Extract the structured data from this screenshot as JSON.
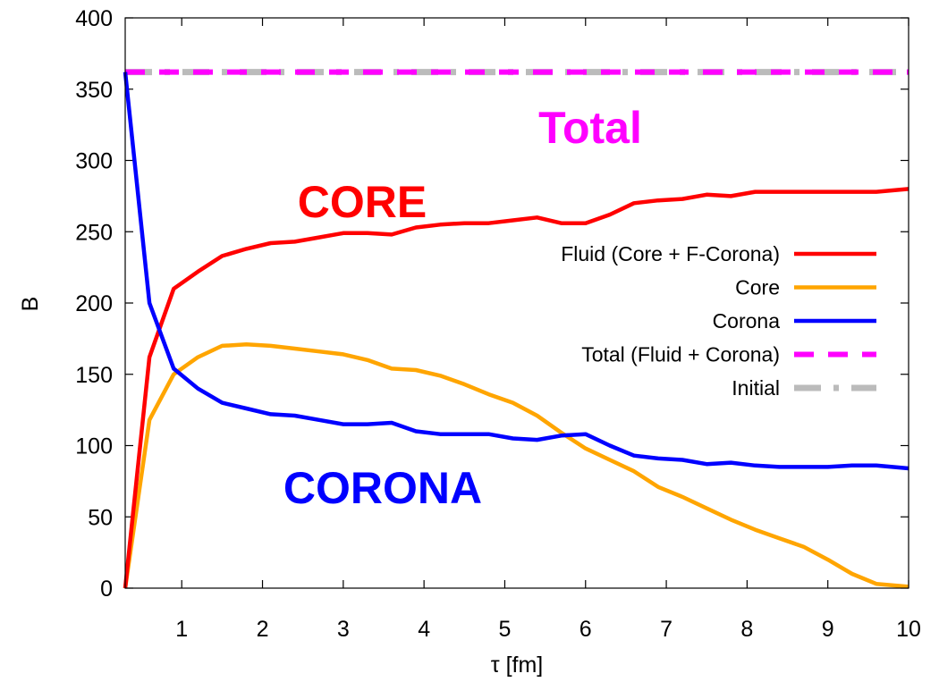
{
  "chart_data": {
    "type": "line",
    "xlabel": "τ [fm]",
    "ylabel": "B",
    "xlim": [
      0.3,
      10
    ],
    "ylim": [
      0,
      400
    ],
    "xticks": [
      1,
      2,
      3,
      4,
      5,
      6,
      7,
      8,
      9,
      10
    ],
    "yticks": [
      0,
      50,
      100,
      150,
      200,
      250,
      300,
      350,
      400
    ],
    "grid": false,
    "legend_position": "right",
    "annotations": [
      {
        "text": "Total",
        "color": "#ff00ff"
      },
      {
        "text": "CORE",
        "color": "#ff0000"
      },
      {
        "text": "CORONA",
        "color": "#0000ff"
      }
    ],
    "series": [
      {
        "name": "Fluid (Core + F-Corona)",
        "color": "#ff0000",
        "style": "solid",
        "x": [
          0.3,
          0.6,
          0.9,
          1.2,
          1.5,
          1.8,
          2.1,
          2.4,
          2.7,
          3.0,
          3.3,
          3.6,
          3.9,
          4.2,
          4.5,
          4.8,
          5.1,
          5.4,
          5.7,
          6.0,
          6.3,
          6.6,
          6.9,
          7.2,
          7.5,
          7.8,
          8.1,
          8.4,
          8.7,
          9.0,
          9.3,
          9.6,
          10.0
        ],
        "y": [
          0,
          162,
          210,
          222,
          233,
          238,
          242,
          243,
          246,
          249,
          249,
          248,
          253,
          255,
          256,
          256,
          258,
          260,
          256,
          256,
          262,
          270,
          272,
          273,
          276,
          275,
          278,
          278,
          278,
          278,
          278,
          278,
          280
        ]
      },
      {
        "name": "Core",
        "color": "#ffa500",
        "style": "solid",
        "x": [
          0.3,
          0.6,
          0.9,
          1.2,
          1.5,
          1.8,
          2.1,
          2.4,
          2.7,
          3.0,
          3.3,
          3.6,
          3.9,
          4.2,
          4.5,
          4.8,
          5.1,
          5.4,
          5.7,
          6.0,
          6.3,
          6.6,
          6.9,
          7.2,
          7.5,
          7.8,
          8.1,
          8.4,
          8.7,
          9.0,
          9.3,
          9.6,
          10.0
        ],
        "y": [
          0,
          118,
          150,
          162,
          170,
          171,
          170,
          168,
          166,
          164,
          160,
          154,
          153,
          149,
          143,
          136,
          130,
          121,
          109,
          98,
          90,
          82,
          71,
          64,
          56,
          48,
          41,
          35,
          29,
          20,
          10,
          3,
          1
        ]
      },
      {
        "name": "Corona",
        "color": "#0000ff",
        "style": "solid",
        "x": [
          0.3,
          0.6,
          0.9,
          1.2,
          1.5,
          1.8,
          2.1,
          2.4,
          2.7,
          3.0,
          3.3,
          3.6,
          3.9,
          4.2,
          4.5,
          4.8,
          5.1,
          5.4,
          5.7,
          6.0,
          6.3,
          6.6,
          6.9,
          7.2,
          7.5,
          7.8,
          8.1,
          8.4,
          8.7,
          9.0,
          9.3,
          9.6,
          10.0
        ],
        "y": [
          362,
          200,
          154,
          140,
          130,
          126,
          122,
          121,
          118,
          115,
          115,
          116,
          110,
          108,
          108,
          108,
          105,
          104,
          107,
          108,
          100,
          93,
          91,
          90,
          87,
          88,
          86,
          85,
          85,
          85,
          86,
          86,
          84
        ]
      },
      {
        "name": "Total (Fluid + Corona)",
        "color": "#ff00ff",
        "style": "dashed",
        "x": [
          0.3,
          10.0
        ],
        "y": [
          362,
          362
        ]
      },
      {
        "name": "Initial",
        "color": "#bbbbbb",
        "style": "dash-dot",
        "x": [
          0.3,
          10.0
        ],
        "y": [
          362,
          362
        ]
      }
    ]
  }
}
